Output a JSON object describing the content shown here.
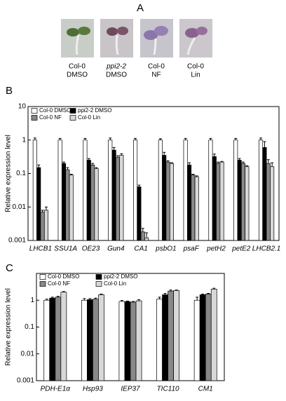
{
  "panel_a": {
    "label": "A",
    "captions": [
      [
        "Col-0",
        "DMSO"
      ],
      [
        "ppi2-2",
        "DMSO"
      ],
      [
        "Col-0",
        "NF"
      ],
      [
        "Col-0",
        "Lin"
      ]
    ]
  },
  "chart_data": [
    {
      "type": "bar",
      "panel_label": "B",
      "y_label": "Relative expression level",
      "log_y": true,
      "grid": false,
      "categories": [
        "LHCB1",
        "SSU1A",
        "OE23",
        "Gun4",
        "CA1",
        "psbO1",
        "psaF",
        "petH2",
        "petE2",
        "LHCB2.1"
      ],
      "ylim": [
        0.001,
        10
      ],
      "yticks": [
        0.001,
        0.01,
        0.1,
        1,
        10
      ],
      "series": [
        {
          "name": "Col-0 DMSO",
          "color": "#ffffff",
          "values": [
            1,
            1,
            1,
            1,
            1,
            1,
            1,
            1,
            1,
            1
          ],
          "errors": [
            0.15,
            0.12,
            0.12,
            0.15,
            0.12,
            0.1,
            0.12,
            0.12,
            0.12,
            0.15
          ]
        },
        {
          "name": "ppi2-2 DMSO",
          "color": "#000000",
          "values": [
            0.15,
            0.2,
            0.25,
            0.5,
            0.04,
            0.35,
            0.18,
            0.32,
            0.25,
            0.6
          ],
          "errors": [
            0.03,
            0.02,
            0.03,
            0.1,
            0.005,
            0.08,
            0.03,
            0.06,
            0.03,
            0.3
          ]
        },
        {
          "name": "Col-0 NF",
          "color": "#888888",
          "values": [
            0.007,
            0.13,
            0.18,
            0.3,
            0.0018,
            0.22,
            0.09,
            0.2,
            0.2,
            0.2
          ],
          "errors": [
            0.001,
            0.02,
            0.02,
            0.04,
            0.0005,
            0.02,
            0.005,
            0.02,
            0.02,
            0.06
          ]
        },
        {
          "name": "Col-0 Lin",
          "color": "#d8d8d8",
          "values": [
            0.008,
            0.09,
            0.14,
            0.35,
            0.0012,
            0.2,
            0.08,
            0.22,
            0.16,
            0.16
          ],
          "errors": [
            0.002,
            0.005,
            0.01,
            0.04,
            0.0005,
            0.01,
            0.005,
            0.01,
            0.01,
            0.05
          ]
        }
      ]
    },
    {
      "type": "bar",
      "panel_label": "C",
      "y_label": "Relative expression level",
      "log_y": true,
      "grid": false,
      "categories": [
        "PDH-E1α",
        "Hsp93",
        "IEP37",
        "TIC110",
        "CM1"
      ],
      "ylim": [
        0.001,
        10
      ],
      "yticks": [
        0.001,
        0.01,
        0.1,
        1
      ],
      "series": [
        {
          "name": "Col-0 DMSO",
          "color": "#ffffff",
          "values": [
            1,
            1,
            0.9,
            1.1,
            1
          ],
          "errors": [
            0.1,
            0.15,
            0.08,
            0.2,
            0.3
          ]
        },
        {
          "name": "ppi2-2 DMSO",
          "color": "#000000",
          "values": [
            1.2,
            1.05,
            0.88,
            1.6,
            1.6
          ],
          "errors": [
            0.1,
            0.1,
            0.05,
            0.2,
            0.1
          ]
        },
        {
          "name": "Col-0 NF",
          "color": "#888888",
          "values": [
            1.3,
            1.1,
            0.85,
            2.2,
            1.7
          ],
          "errors": [
            0.1,
            0.1,
            0.05,
            0.2,
            0.1
          ]
        },
        {
          "name": "Col-0 Lin",
          "color": "#d8d8d8",
          "values": [
            2,
            1.6,
            0.95,
            2.3,
            2.6
          ],
          "errors": [
            0.1,
            0.1,
            0.1,
            0.1,
            0.2
          ]
        }
      ]
    }
  ]
}
